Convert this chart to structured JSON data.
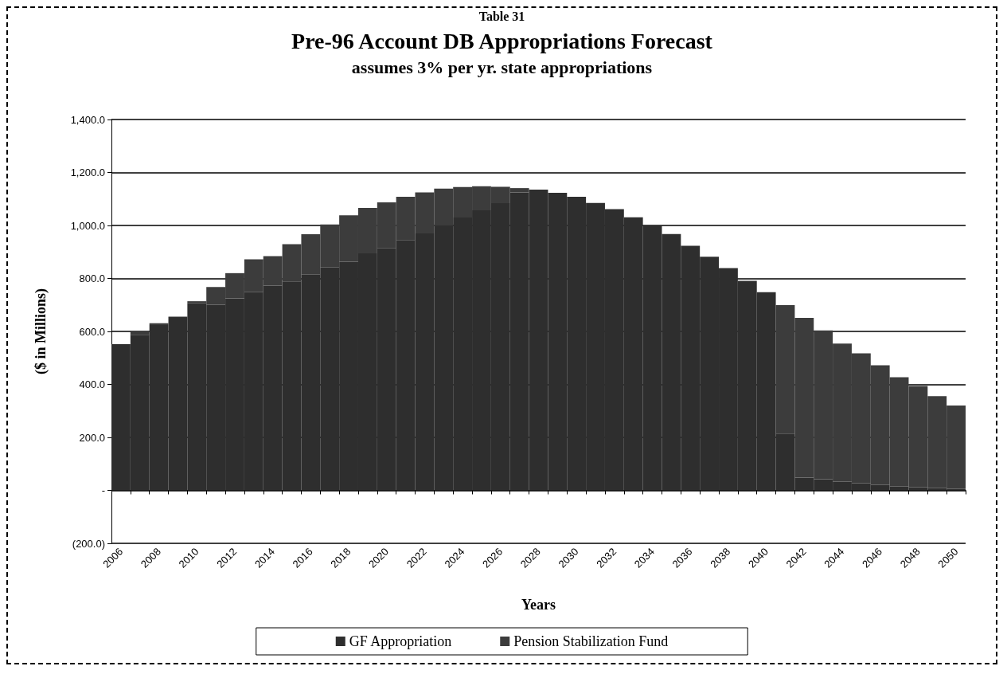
{
  "chart_data": {
    "type": "bar",
    "stacked": true,
    "title": "Pre-96 Account DB Appropriations Forecast",
    "subtitle": "assumes 3% per yr. state appropriations",
    "xlabel": "Years",
    "ylabel": "($ in Millions)",
    "annotations": [
      "Table 31"
    ],
    "categories": [
      "2006",
      null,
      "2008",
      null,
      "2010",
      null,
      "2012",
      null,
      "2014",
      null,
      "2016",
      null,
      "2018",
      null,
      "2020",
      null,
      "2022",
      null,
      "2024",
      null,
      "2026",
      null,
      "2028",
      null,
      "2030",
      null,
      "2032",
      null,
      "2034",
      null,
      "2036",
      null,
      "2038",
      null,
      "2040",
      null,
      "2042",
      null,
      "2044",
      null,
      "2046",
      null,
      "2048",
      null,
      "2050"
    ],
    "series": [
      {
        "name": "GF Appropriation",
        "color": "#2e2e2e",
        "values": [
          552,
          587,
          624,
          656,
          706,
          701,
          725,
          748,
          773,
          789,
          814,
          841,
          863,
          895,
          915,
          945,
          970,
          1001,
          1030,
          1057,
          1084,
          1125,
          1135,
          1123,
          1108,
          1085,
          1062,
          1031,
          999,
          968,
          923,
          882,
          839,
          791,
          748,
          214,
          48,
          42,
          32,
          26,
          20,
          14,
          11,
          8,
          5
        ]
      },
      {
        "name": "Pension Stabilization Fund",
        "color": "#3c3c3c",
        "values": [
          0,
          12,
          7,
          0,
          8,
          67,
          95,
          124,
          111,
          140,
          153,
          163,
          175,
          171,
          172,
          163,
          155,
          138,
          115,
          91,
          62,
          16,
          0,
          0,
          0,
          0,
          0,
          0,
          0,
          0,
          0,
          0,
          0,
          0,
          0,
          485,
          603,
          562,
          522,
          491,
          452,
          413,
          383,
          348,
          315
        ]
      }
    ],
    "ylim": [
      -200,
      1400
    ],
    "yticks": [
      {
        "value": -200,
        "label": "(200.0)"
      },
      {
        "value": 0,
        "label": "-"
      },
      {
        "value": 200,
        "label": "200.0"
      },
      {
        "value": 400,
        "label": "400.0"
      },
      {
        "value": 600,
        "label": "600.0"
      },
      {
        "value": 800,
        "label": "800.0"
      },
      {
        "value": 1000,
        "label": "1,000.0"
      },
      {
        "value": 1200,
        "label": "1,200.0"
      },
      {
        "value": 1400,
        "label": "1,400.0"
      }
    ],
    "grid": "y",
    "legend": "bottom"
  }
}
